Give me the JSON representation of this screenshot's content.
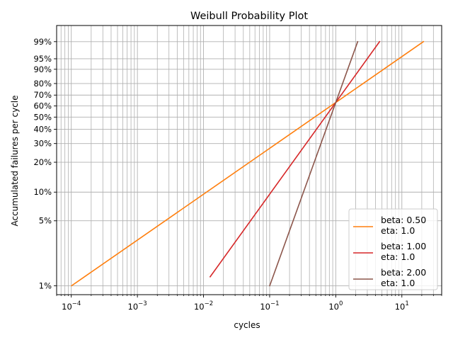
{
  "chart_data": {
    "type": "line",
    "title": "Weibull Probability Plot",
    "xlabel": "cycles",
    "ylabel": "Accumulated failures per cycle",
    "x_scale": "log",
    "y_scale": "weibull",
    "xlim": [
      6e-05,
      40
    ],
    "ylim": [
      0.008,
      0.999
    ],
    "grid": true,
    "legend_position": "lower-right",
    "x_ticks": [
      {
        "value": 0.0001,
        "base": "10",
        "exp": "−4"
      },
      {
        "value": 0.001,
        "base": "10",
        "exp": "−3"
      },
      {
        "value": 0.01,
        "base": "10",
        "exp": "−2"
      },
      {
        "value": 0.1,
        "base": "10",
        "exp": "−1"
      },
      {
        "value": 1,
        "base": "10",
        "exp": "0"
      },
      {
        "value": 10,
        "base": "10",
        "exp": "1"
      }
    ],
    "y_ticks": [
      {
        "value": 0.01,
        "label": "1%"
      },
      {
        "value": 0.05,
        "label": "5%"
      },
      {
        "value": 0.1,
        "label": "10%"
      },
      {
        "value": 0.2,
        "label": "20%"
      },
      {
        "value": 0.3,
        "label": "30%"
      },
      {
        "value": 0.4,
        "label": "40%"
      },
      {
        "value": 0.5,
        "label": "50%"
      },
      {
        "value": 0.6,
        "label": "60%"
      },
      {
        "value": 0.7,
        "label": "70%"
      },
      {
        "value": 0.8,
        "label": "80%"
      },
      {
        "value": 0.9,
        "label": "90%"
      },
      {
        "value": 0.95,
        "label": "95%"
      },
      {
        "value": 0.99,
        "label": "99%"
      }
    ],
    "series": [
      {
        "name": "beta: 0.50\neta: 1.0",
        "label_line1": "beta: 0.50",
        "label_line2": "eta: 1.0",
        "color": "#ff7f0e",
        "beta": 0.5,
        "eta": 1.0,
        "x": [
          0.000101,
          21.2
        ],
        "y": [
          0.01,
          0.99
        ]
      },
      {
        "name": "beta: 1.00\neta: 1.0",
        "label_line1": "beta: 1.00",
        "label_line2": "eta: 1.0",
        "color": "#d62728",
        "beta": 1.0,
        "eta": 1.0,
        "x": [
          0.0126,
          4.6
        ],
        "y": [
          0.0125,
          0.99
        ]
      },
      {
        "name": "beta: 2.00\neta: 1.0",
        "label_line1": "beta: 2.00",
        "label_line2": "eta: 1.0",
        "color": "#8c564b",
        "beta": 2.0,
        "eta": 1.0,
        "x": [
          0.1003,
          2.146
        ],
        "y": [
          0.01,
          0.99
        ]
      }
    ]
  }
}
